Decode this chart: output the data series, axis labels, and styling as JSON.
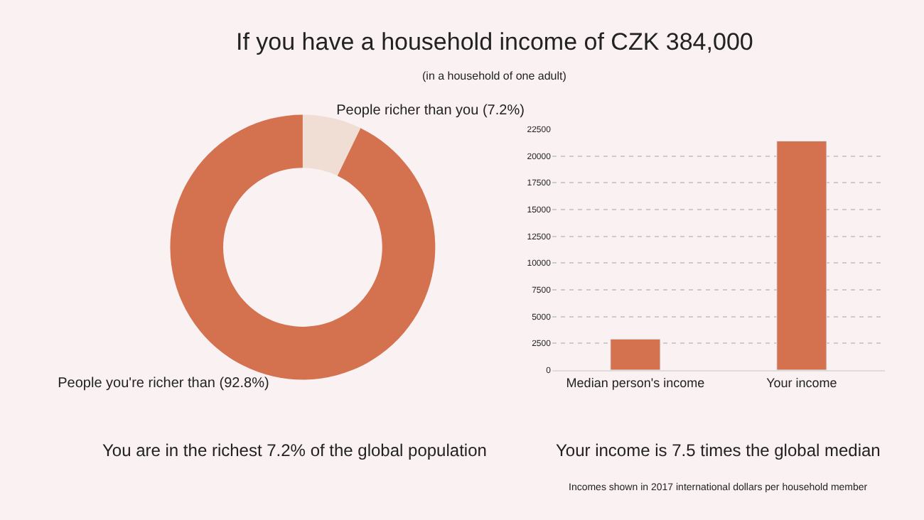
{
  "chart_data": [
    {
      "type": "donut",
      "title": "If you have a household income of CZK 384,000",
      "subtitle": "(in a household of one adult)",
      "categories": [
        "People richer than you (7.2%)",
        "People you're richer than (92.8%)"
      ],
      "values": [
        7.2,
        92.8
      ],
      "colors": [
        "#f0ddd3",
        "#d4714e"
      ],
      "annotations": [
        "You are in the richest 7.2% of the global population"
      ]
    },
    {
      "type": "bar",
      "categories": [
        "Median person's income",
        "Your income"
      ],
      "values": [
        2900,
        21400
      ],
      "color": "#d4714e",
      "ylim": [
        0,
        22500
      ],
      "yticks": [
        0,
        2500,
        5000,
        7500,
        10000,
        12500,
        15000,
        17500,
        20000,
        22500
      ],
      "grid": "y",
      "annotations": [
        "Your income is 7.5 times the global median",
        "Incomes shown in 2017 international dollars per household member"
      ]
    }
  ]
}
